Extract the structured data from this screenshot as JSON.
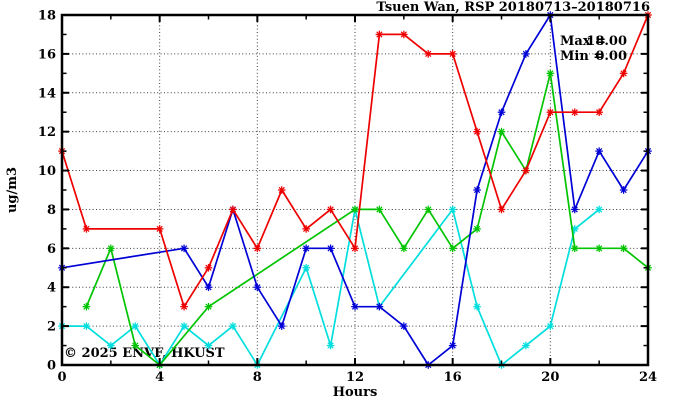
{
  "figure": {
    "title": "Tsuen Wan, RSP 20180713–20180716",
    "watermark": "© 2025 ENVF, HKUST"
  },
  "legend": {
    "max_label": "Max =",
    "max_value": "18.00",
    "min_label": "Min =",
    "min_value": "0.00"
  },
  "chart_data": {
    "type": "line",
    "title": "Tsuen Wan, RSP 20180713–20180716",
    "xlabel": "Hours",
    "ylabel": "ug/m3",
    "xlim": [
      0,
      24
    ],
    "ylim": [
      0,
      18
    ],
    "x": [
      0,
      1,
      2,
      3,
      4,
      5,
      6,
      7,
      8,
      9,
      10,
      11,
      12,
      13,
      14,
      15,
      16,
      17,
      18,
      19,
      20,
      21,
      22,
      23,
      24
    ],
    "xticks_major": [
      0,
      4,
      8,
      12,
      16,
      20,
      24
    ],
    "xticks_minor": [
      2,
      6,
      10,
      14,
      18,
      22
    ],
    "yticks_major": [
      0,
      2,
      4,
      6,
      8,
      10,
      12,
      14,
      16,
      18
    ],
    "yticks_minor": [
      1,
      3,
      5,
      7,
      9,
      11,
      13,
      15,
      17
    ],
    "grid": {
      "x_values": [
        4,
        8,
        12,
        16,
        20
      ],
      "y_values": [
        2,
        4,
        6,
        8,
        10,
        12,
        14,
        16
      ],
      "style": "dotted"
    },
    "legend_position": "top-right-inside",
    "annotations": {
      "max": "18.00",
      "min": "0.00"
    },
    "series": [
      {
        "name": "cyan-series",
        "color": "#00dede",
        "values": [
          2,
          2,
          1,
          2,
          0,
          2,
          1,
          2,
          0,
          null,
          5,
          1,
          8,
          3,
          null,
          null,
          8,
          3,
          0,
          1,
          2,
          7,
          8,
          null,
          null
        ]
      },
      {
        "name": "green-series",
        "color": "#00c400",
        "values": [
          null,
          3,
          6,
          1,
          0,
          null,
          3,
          null,
          null,
          null,
          null,
          null,
          8,
          8,
          6,
          8,
          6,
          7,
          12,
          10,
          15,
          6,
          6,
          6,
          5
        ]
      },
      {
        "name": "blue-series",
        "color": "#0000d6",
        "values": [
          5,
          null,
          null,
          null,
          null,
          6,
          4,
          8,
          4,
          2,
          6,
          6,
          3,
          3,
          2,
          0,
          1,
          9,
          13,
          16,
          18,
          8,
          11,
          9,
          11
        ]
      },
      {
        "name": "red-series",
        "color": "#ee0000",
        "values": [
          11,
          7,
          null,
          null,
          7,
          3,
          5,
          8,
          6,
          9,
          7,
          8,
          6,
          17,
          17,
          16,
          16,
          12,
          8,
          10,
          13,
          13,
          13,
          15,
          18
        ]
      }
    ]
  },
  "colors": {
    "axis": "#000000",
    "grid": "#3c3c3c",
    "watermark": "#cdd2df",
    "background": "#ffffff"
  }
}
